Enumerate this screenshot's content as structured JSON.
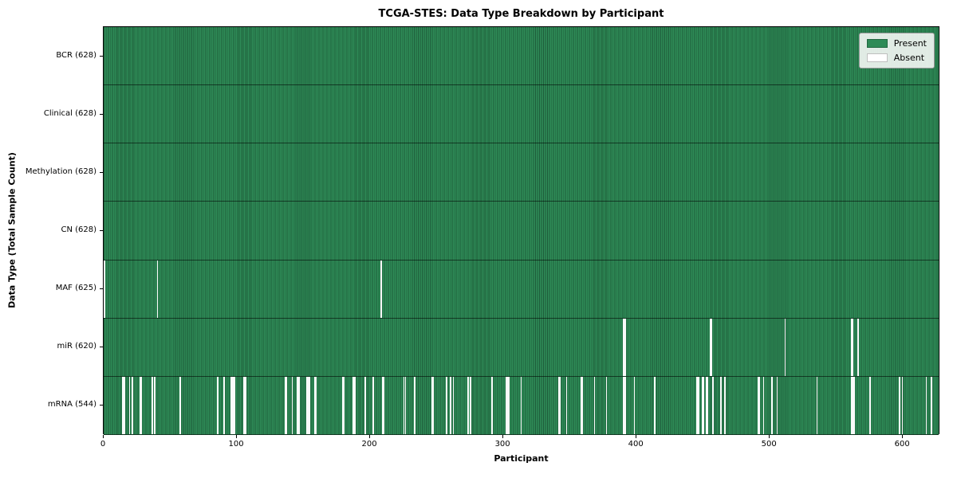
{
  "title": "TCGA-STES: Data Type Breakdown by Participant",
  "xlabel": "Participant",
  "ylabel": "Data Type (Total Sample Count)",
  "legend": {
    "present_label": "Present",
    "absent_label": "Absent"
  },
  "colors": {
    "present": "#2e8b57",
    "absent": "#ffffff",
    "bar_edge": "#1e5c3a",
    "background": "#ffffff"
  },
  "chart_data": {
    "type": "heatmap",
    "title": "TCGA-STES: Data Type Breakdown by Participant",
    "xlabel": "Participant",
    "ylabel": "Data Type (Total Sample Count)",
    "x_range": [
      0,
      628
    ],
    "x_ticks": [
      0,
      100,
      200,
      300,
      400,
      500,
      600
    ],
    "total_participants": 628,
    "grid": false,
    "legend_position": "upper right",
    "legend_entries": [
      "Present",
      "Absent"
    ],
    "rows": [
      {
        "data_type": "BCR",
        "label": "BCR (628)",
        "present_count": 628,
        "absent_participants": []
      },
      {
        "data_type": "Clinical",
        "label": "Clinical (628)",
        "present_count": 628,
        "absent_participants": []
      },
      {
        "data_type": "Methylation",
        "label": "Methylation (628)",
        "present_count": 628,
        "absent_participants": []
      },
      {
        "data_type": "CN",
        "label": "CN (628)",
        "present_count": 628,
        "absent_participants": []
      },
      {
        "data_type": "MAF",
        "label": "MAF (625)",
        "present_count": 625,
        "absent_participants": [
          0,
          40,
          208
        ]
      },
      {
        "data_type": "miR",
        "label": "miR (620)",
        "present_count": 620,
        "absent_participants": [
          390,
          391,
          455,
          456,
          511,
          561,
          562,
          566
        ]
      },
      {
        "data_type": "mRNA",
        "label": "mRNA (544)",
        "present_count": 544,
        "absent_participants": [
          14,
          15,
          19,
          21,
          27,
          28,
          36,
          38,
          57,
          85,
          90,
          95,
          96,
          97,
          98,
          105,
          106,
          136,
          137,
          141,
          145,
          146,
          152,
          153,
          154,
          158,
          159,
          179,
          180,
          187,
          188,
          196,
          202,
          209,
          210,
          225,
          226,
          233,
          246,
          247,
          257,
          260,
          262,
          273,
          275,
          291,
          302,
          303,
          304,
          313,
          341,
          342,
          347,
          358,
          359,
          368,
          377,
          390,
          391,
          398,
          413,
          445,
          446,
          449,
          450,
          452,
          453,
          457,
          463,
          466,
          491,
          492,
          495,
          501,
          505,
          535,
          561,
          562,
          563,
          575,
          597,
          599,
          617,
          621
        ]
      }
    ]
  }
}
